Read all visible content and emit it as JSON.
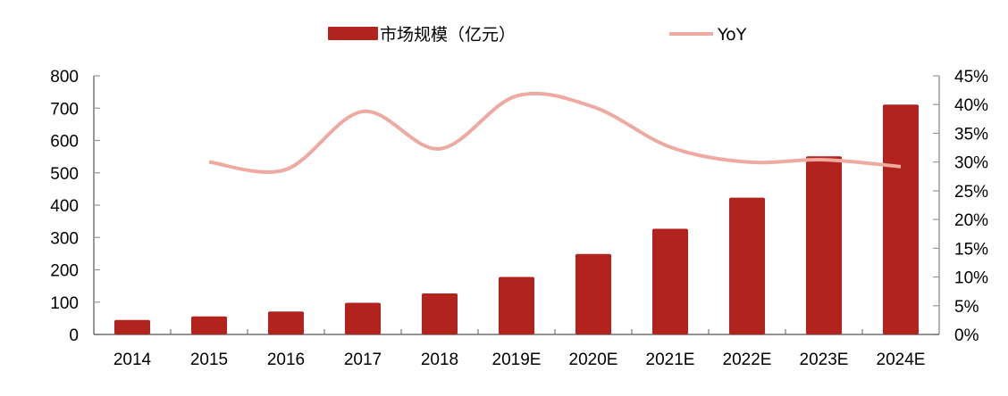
{
  "chart_data": {
    "type": "bar+line",
    "title": "",
    "categories": [
      "2014",
      "2015",
      "2016",
      "2017",
      "2018",
      "2019E",
      "2020E",
      "2021E",
      "2022E",
      "2023E",
      "2024E"
    ],
    "series": [
      {
        "name": "市场规模（亿元）",
        "type": "bar",
        "axis": "left",
        "color": "#b2231d",
        "values": [
          45,
          56,
          71,
          98,
          127,
          178,
          249,
          327,
          423,
          551,
          711
        ]
      },
      {
        "name": "YoY",
        "type": "line",
        "axis": "right",
        "color": "#eeaaa0",
        "values": [
          null,
          30.0,
          28.7,
          38.8,
          32.3,
          41.5,
          39.6,
          32.6,
          30.0,
          30.4,
          29.2
        ]
      }
    ],
    "left_axis": {
      "min": 0,
      "max": 800,
      "step": 100,
      "ticks": [
        "0",
        "100",
        "200",
        "300",
        "400",
        "500",
        "600",
        "700",
        "800"
      ]
    },
    "right_axis": {
      "min": 0,
      "max": 45,
      "step": 5,
      "ticks": [
        "0%",
        "5%",
        "10%",
        "15%",
        "20%",
        "25%",
        "30%",
        "35%",
        "40%",
        "45%"
      ]
    },
    "xlabel": "",
    "ylabel": "",
    "ylabel_right": "",
    "grid": false,
    "legend_position": "top"
  },
  "legend": {
    "bar_label": "市场规模（亿元）",
    "line_label": "YoY"
  }
}
